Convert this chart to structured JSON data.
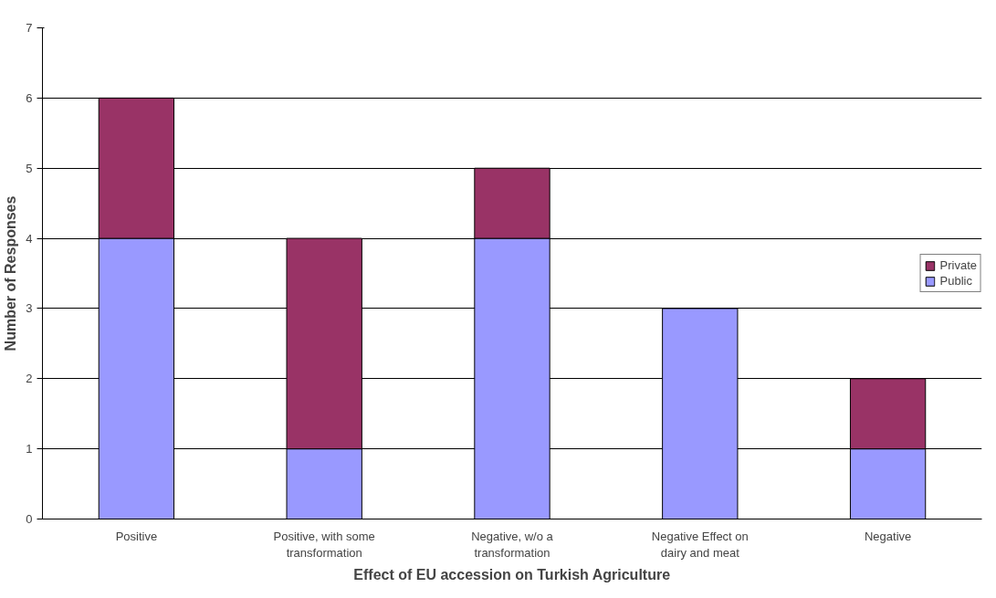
{
  "chart_data": {
    "type": "bar",
    "stacked": true,
    "xlabel": "Effect of EU accession on Turkish Agriculture",
    "ylabel": "Number of Responses",
    "categories": [
      "Positive",
      "Positive, with some transformation",
      "Negative, w/o a transformation",
      "Negative Effect on dairy and meat",
      "Negative"
    ],
    "series": [
      {
        "name": "Public",
        "color": "#9999ff",
        "values": [
          4,
          1,
          4,
          3,
          1
        ]
      },
      {
        "name": "Private",
        "color": "#993366",
        "values": [
          2,
          3,
          1,
          null,
          1
        ]
      }
    ],
    "ylim": [
      0,
      7
    ],
    "yticks": [
      0,
      1,
      2,
      3,
      4,
      5,
      6,
      7
    ],
    "grid": "y",
    "legend": "right"
  }
}
